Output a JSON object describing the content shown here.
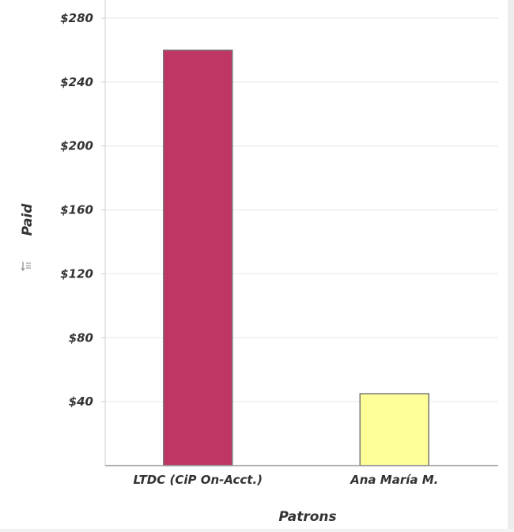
{
  "chart_data": {
    "type": "bar",
    "xlabel": "Patrons",
    "ylabel": "Paid",
    "categories": [
      "LTDC (CiP On-Acct.)",
      "Ana María M."
    ],
    "values": [
      260,
      45
    ],
    "colors": [
      "#bf3664",
      "#ffff99"
    ],
    "ylim": [
      0,
      280
    ],
    "yticks": [
      40,
      80,
      120,
      160,
      200,
      240,
      280
    ],
    "ytick_labels": [
      "$40",
      "$80",
      "$120",
      "$160",
      "$200",
      "$240",
      "$280"
    ],
    "grid": true,
    "legend": "none"
  },
  "icons": {
    "ylabel_icon": "sort-icon"
  }
}
